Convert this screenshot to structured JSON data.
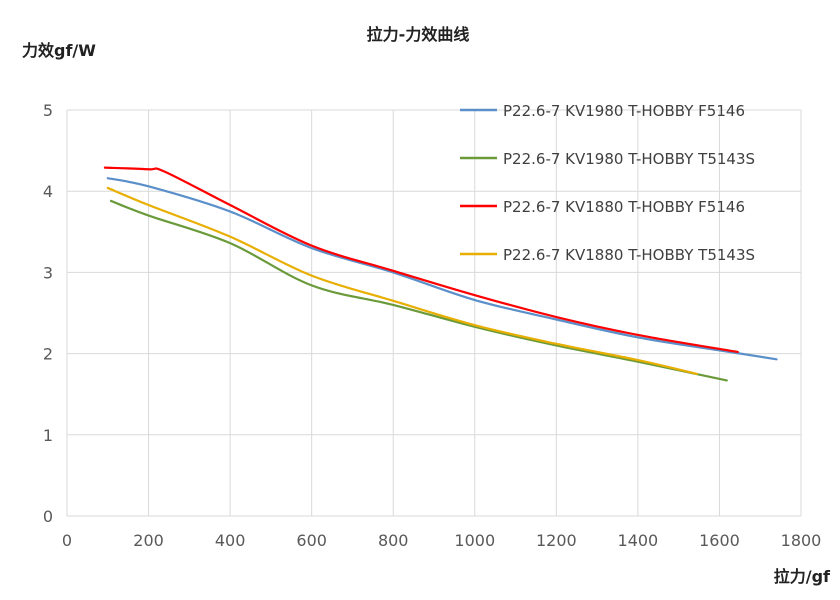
{
  "chart_data": {
    "type": "line",
    "title": "拉力-力效曲线",
    "xlabel": "拉力/gf",
    "ylabel": "力效gf/W",
    "xlim": [
      0,
      1800
    ],
    "ylim": [
      0,
      5
    ],
    "xticks": [
      0,
      200,
      400,
      600,
      800,
      1000,
      1200,
      1400,
      1600,
      1800
    ],
    "yticks": [
      0,
      1,
      2,
      3,
      4,
      5
    ],
    "grid": true,
    "legend": "top-right",
    "series": [
      {
        "name": "P22.6-7 KV1980 T-HOBBY F5146",
        "color": "#5B8FC9",
        "x": [
          100,
          200,
          400,
          600,
          800,
          1000,
          1200,
          1400,
          1600,
          1740
        ],
        "y": [
          4.16,
          4.06,
          3.75,
          3.3,
          3.0,
          2.66,
          2.42,
          2.2,
          2.04,
          1.93
        ]
      },
      {
        "name": "P22.6-7 KV1980 T-HOBBY T5143S",
        "color": "#6A9A3A",
        "x": [
          108,
          200,
          400,
          600,
          800,
          1000,
          1200,
          1400,
          1618
        ],
        "y": [
          3.88,
          3.7,
          3.36,
          2.84,
          2.6,
          2.33,
          2.1,
          1.9,
          1.67
        ]
      },
      {
        "name": "P22.6-7 KV1880 T-HOBBY F5146",
        "color": "#FF0000",
        "x": [
          93,
          200,
          240,
          400,
          600,
          800,
          1000,
          1200,
          1400,
          1645
        ],
        "y": [
          4.29,
          4.27,
          4.24,
          3.83,
          3.33,
          3.02,
          2.72,
          2.45,
          2.23,
          2.02
        ]
      },
      {
        "name": "P22.6-7 KV1880 T-HOBBY T5143S",
        "color": "#E8AE00",
        "x": [
          100,
          200,
          400,
          600,
          800,
          1000,
          1200,
          1400,
          1545
        ],
        "y": [
          4.04,
          3.83,
          3.44,
          2.96,
          2.65,
          2.35,
          2.12,
          1.92,
          1.75
        ]
      }
    ]
  }
}
